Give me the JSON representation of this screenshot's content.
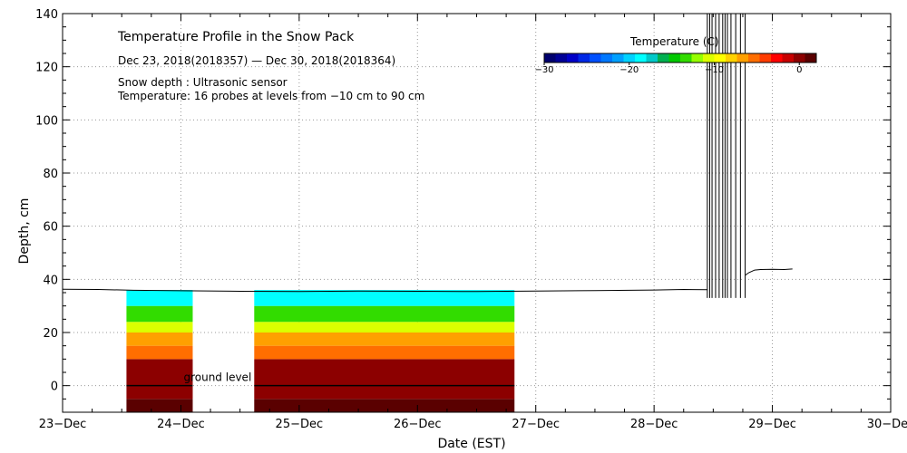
{
  "chart_data": {
    "type": "heatmap",
    "title": "Temperature Profile in the Snow Pack",
    "subtitle": "Dec 23, 2018(2018357) — Dec 30, 2018(2018364)",
    "notes": [
      "Snow depth : Ultrasonic sensor",
      "Temperature: 16 probes at levels from −10 cm to 90 cm"
    ],
    "xlabel": "Date (EST)",
    "ylabel": "Depth, cm",
    "x_ticks": [
      "23−Dec",
      "24−Dec",
      "25−Dec",
      "26−Dec",
      "27−Dec",
      "28−Dec",
      "29−Dec",
      "30−Dec"
    ],
    "xlim": [
      0,
      7
    ],
    "ylim": [
      -10,
      140
    ],
    "y_ticks": [
      0,
      20,
      40,
      60,
      80,
      100,
      120,
      140
    ],
    "ground_label": "ground level",
    "colorbar": {
      "label": "Temperature (C)",
      "range": [
        -30,
        2
      ],
      "tick_values": [
        -30,
        -20,
        -10,
        0
      ],
      "tick_labels": [
        "−30",
        "−20",
        "−10",
        "0"
      ],
      "colors": [
        "#00006e",
        "#000096",
        "#0000c8",
        "#0028e6",
        "#0050ff",
        "#0078ff",
        "#00a0ff",
        "#00d2ff",
        "#00ffff",
        "#00c8c8",
        "#00b050",
        "#00c800",
        "#32dc00",
        "#96ff00",
        "#dcff00",
        "#ffff00",
        "#ffd200",
        "#ffa000",
        "#ff6e00",
        "#ff3c00",
        "#ff0000",
        "#c80000",
        "#8c0000",
        "#5a0000"
      ]
    },
    "snow_depth": {
      "units": "cm",
      "series": [
        {
          "name": "snow depth (flat)",
          "x": [
            0,
            0.3,
            0.6,
            1.0,
            1.5,
            2.0,
            2.5,
            3.0,
            3.5,
            4.0,
            4.5,
            5.0,
            5.25,
            5.45
          ],
          "y": [
            36.3,
            36.2,
            35.9,
            35.7,
            35.5,
            35.4,
            35.6,
            35.5,
            35.4,
            35.6,
            35.8,
            36.0,
            36.2,
            36.1
          ]
        },
        {
          "name": "snow depth (after gap)",
          "x": [
            5.77,
            5.8,
            5.85,
            5.9,
            6.0,
            6.1,
            6.17
          ],
          "y": [
            41.5,
            42.5,
            43.5,
            43.7,
            43.8,
            43.7,
            43.9
          ]
        }
      ],
      "spikes_x": [
        5.45,
        5.47,
        5.49,
        5.52,
        5.55,
        5.58,
        5.6,
        5.62,
        5.65,
        5.69,
        5.73,
        5.77
      ]
    },
    "temperature_blocks": [
      {
        "name": "block-1",
        "x_start": 0.54,
        "x_end": 1.1
      },
      {
        "name": "block-2",
        "x_start": 1.62,
        "x_end": 3.82
      }
    ],
    "temperature_layers": [
      {
        "from": -10,
        "to": -5,
        "temp": 1.5
      },
      {
        "from": -5,
        "to": 0,
        "temp": 0
      },
      {
        "from": 0,
        "to": 10,
        "temp": 0.5
      },
      {
        "from": 10,
        "to": 15,
        "temp": -5
      },
      {
        "from": 15,
        "to": 20,
        "temp": -7
      },
      {
        "from": 20,
        "to": 24,
        "temp": -10
      },
      {
        "from": 24,
        "to": 30,
        "temp": -14
      },
      {
        "from": 30,
        "to": 36,
        "temp": -19
      }
    ]
  }
}
